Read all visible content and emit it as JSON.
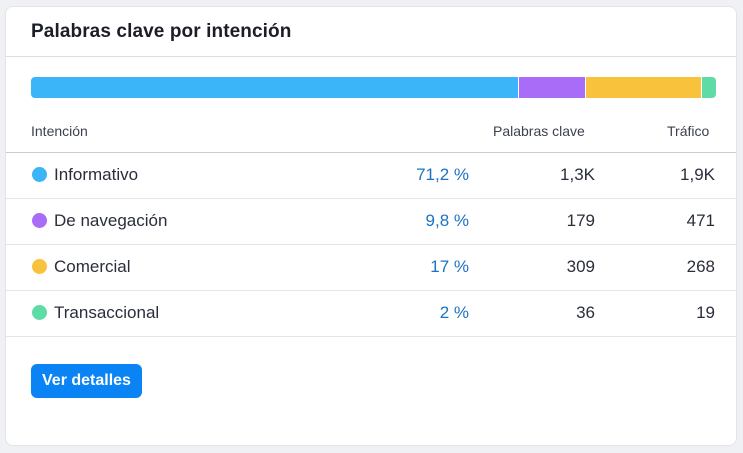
{
  "card": {
    "title": "Palabras clave por intención"
  },
  "columns": {
    "intent": "Intención",
    "keywords": "Palabras clave",
    "traffic": "Tráfico"
  },
  "distribution_bar": [
    {
      "intent": "Informativo",
      "fraction": 0.712,
      "color": "#3bb5f7"
    },
    {
      "intent": "De navegación",
      "fraction": 0.098,
      "color": "#a86cf7"
    },
    {
      "intent": "Comercial",
      "fraction": 0.17,
      "color": "#f9c23c"
    },
    {
      "intent": "Transaccional",
      "fraction": 0.02,
      "color": "#5fdba6"
    }
  ],
  "rows": [
    {
      "label": "Informativo",
      "percent": "71,2 %",
      "keywords": "1,3K",
      "traffic": "1,9K",
      "color": "#3bb5f7"
    },
    {
      "label": "De navegación",
      "percent": "9,8 %",
      "keywords": "179",
      "traffic": "471",
      "color": "#a86cf7"
    },
    {
      "label": "Comercial",
      "percent": "17 %",
      "keywords": "309",
      "traffic": "268",
      "color": "#f9c23c"
    },
    {
      "label": "Transaccional",
      "percent": "2 %",
      "keywords": "36",
      "traffic": "19",
      "color": "#5fdba6"
    }
  ],
  "actions": {
    "details_label": "Ver detalles"
  }
}
